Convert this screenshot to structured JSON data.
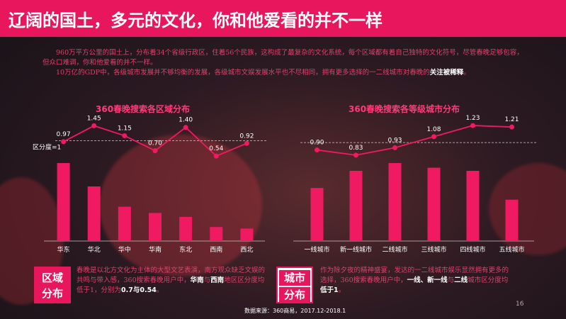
{
  "header": {
    "title": "辽阔的国土，多元的文化，你和他爱看的并不一样"
  },
  "intro": {
    "p1": "960万平方公里的国土上，分布着34个省级行政区，住着56个民族，这构成了最复杂的文化系统，每个区域都有着自己独特的文化符号，尽管春晚足够包容，但众口难调，你和他爱看的并不一样。",
    "p2_a": "10万亿的GDP中，各级城市发展并不够均衡的发展，各级城市文娱发展水平也不尽相同，拥有更多选择的一二线城市对春晚的",
    "p2_em": "关注被稀释",
    "p2_b": "。"
  },
  "left_note": {
    "tag_l1": "区域",
    "tag_l2": "分布",
    "t1": "春晚是以北方文化为主体的大型文艺表演，南方观众缺乏文娱的共鸣与带入感，360搜索春晚用户中，",
    "h1": "华南",
    "t2": "与",
    "h2": "西南",
    "t3": "地区区分度均低于1，分别为",
    "h3": "0.7与0.54",
    "t4": "。"
  },
  "right_note": {
    "tag_l1": "城市",
    "tag_l2": "分布",
    "t1": "作为除夕夜的精神盛宴，发达的一二线城市娱乐显然拥有更多的选择，360搜索春晚用户中，",
    "h1": "一线、新一线",
    "t2": "与",
    "h2": "二线",
    "t3": "城市区分度均",
    "h3": "低于1",
    "t4": "。"
  },
  "source": "数据来源：360商易，2017.12-2018.1",
  "page_number": "16",
  "colors": {
    "accent": "#e8175d",
    "bar": "#f01a62",
    "line": "#f01a62"
  },
  "chart_data": [
    {
      "type": "bar+line",
      "title": "360春晚搜索各区域分布",
      "categories": [
        "华东",
        "华北",
        "华中",
        "华南",
        "东北",
        "西南",
        "西北"
      ],
      "bar_values": [
        1.0,
        0.7,
        0.44,
        0.36,
        0.31,
        0.18,
        0.16
      ],
      "line_values": [
        0.97,
        1.45,
        1.15,
        0.7,
        1.4,
        0.54,
        0.92
      ],
      "line_labels": [
        "0.97",
        "1.45",
        "1.15",
        "0.70",
        "1.40",
        "0.54",
        "0.92"
      ],
      "baseline_label": "区分度=1",
      "baseline_value": 1
    },
    {
      "type": "bar+line",
      "title": "360春晚搜索各等级城市分布",
      "categories": [
        "一线城市",
        "新一线城市",
        "二线城市",
        "三线城市",
        "四线城市",
        "五线城市"
      ],
      "bar_values": [
        0.68,
        0.9,
        1.0,
        0.94,
        0.9,
        0.53
      ],
      "line_values": [
        0.9,
        0.83,
        0.93,
        1.08,
        1.23,
        1.21
      ],
      "line_labels": [
        "0.90",
        "0.83",
        "0.93",
        "1.08",
        "1.23",
        "1.21"
      ],
      "baseline_value": 1
    }
  ]
}
